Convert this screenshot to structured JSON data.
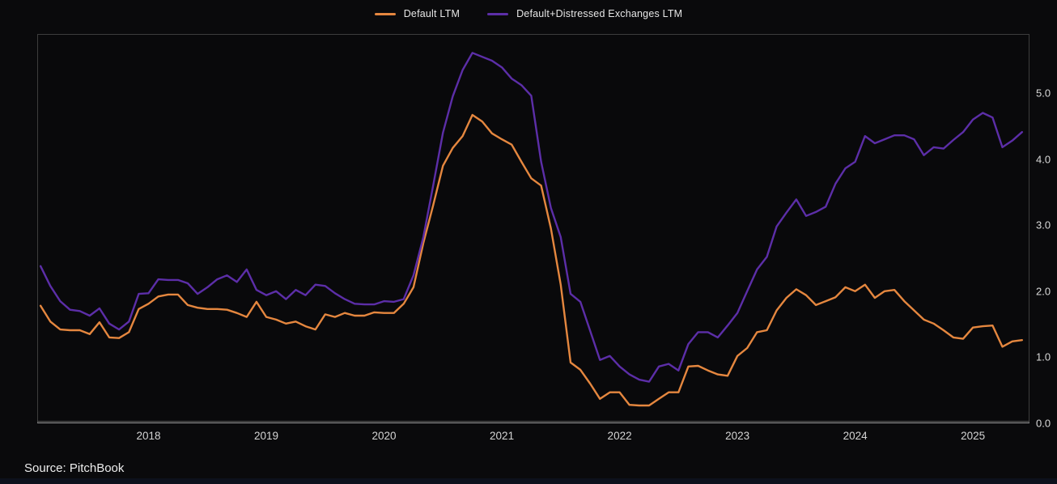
{
  "legend": [
    {
      "label": "Default LTM",
      "color": "#e5873f"
    },
    {
      "label": "Default+Distressed Exchanges LTM",
      "color": "#5c2ea8"
    }
  ],
  "source_label": "Source: PitchBook",
  "colors": {
    "background": "#0a0a0c",
    "plot_border": "#3d3d3d",
    "axis_line": "#a0a0a0",
    "tick_text": "#d6d6d6",
    "bottom_strip": "#0d111c"
  },
  "chart_data": {
    "type": "line",
    "title": "",
    "xlabel": "",
    "ylabel": "",
    "grid": false,
    "legend_position": "top-center",
    "x_start": 2017.0833,
    "x_step_years": 0.0833333,
    "xlim": [
      2017.055,
      2025.48
    ],
    "ylim": [
      0,
      5.895
    ],
    "x_ticks": [
      2018,
      2019,
      2020,
      2021,
      2022,
      2023,
      2024,
      2025
    ],
    "y_ticks": [
      0,
      1,
      2,
      3,
      4,
      5
    ],
    "y_tick_labels": [
      "0.0",
      "1.0",
      "2.0",
      "3.0",
      "4.0",
      "5.0"
    ],
    "series": [
      {
        "id": "default-ltm",
        "name": "Default LTM",
        "color": "#e5873f",
        "values": [
          1.78,
          1.54,
          1.42,
          1.41,
          1.41,
          1.35,
          1.53,
          1.3,
          1.29,
          1.38,
          1.73,
          1.81,
          1.92,
          1.95,
          1.95,
          1.79,
          1.75,
          1.73,
          1.73,
          1.72,
          1.67,
          1.61,
          1.84,
          1.61,
          1.57,
          1.51,
          1.54,
          1.47,
          1.42,
          1.65,
          1.61,
          1.67,
          1.63,
          1.63,
          1.68,
          1.67,
          1.67,
          1.81,
          2.06,
          2.73,
          3.3,
          3.9,
          4.17,
          4.35,
          4.67,
          4.57,
          4.39,
          4.3,
          4.22,
          3.96,
          3.71,
          3.6,
          2.95,
          2.1,
          0.92,
          0.81,
          0.6,
          0.37,
          0.47,
          0.47,
          0.28,
          0.27,
          0.27,
          0.37,
          0.47,
          0.47,
          0.86,
          0.87,
          0.8,
          0.74,
          0.72,
          1.02,
          1.14,
          1.38,
          1.41,
          1.71,
          1.9,
          2.03,
          1.94,
          1.79,
          1.85,
          1.91,
          2.06,
          2.0,
          2.1,
          1.9,
          2.0,
          2.02,
          1.85,
          1.71,
          1.57,
          1.51,
          1.41,
          1.3,
          1.28,
          1.45,
          1.47,
          1.48,
          1.16,
          1.24,
          1.26
        ]
      },
      {
        "id": "default-distressed-ltm",
        "name": "Default+Distressed Exchanges LTM",
        "color": "#5c2ea8",
        "values": [
          2.38,
          2.08,
          1.85,
          1.72,
          1.7,
          1.63,
          1.74,
          1.51,
          1.42,
          1.54,
          1.96,
          1.97,
          2.18,
          2.17,
          2.17,
          2.12,
          1.96,
          2.06,
          2.18,
          2.24,
          2.14,
          2.33,
          2.02,
          1.94,
          2.0,
          1.88,
          2.02,
          1.94,
          2.1,
          2.08,
          1.97,
          1.88,
          1.81,
          1.8,
          1.8,
          1.85,
          1.84,
          1.88,
          2.24,
          2.82,
          3.6,
          4.4,
          4.95,
          5.35,
          5.61,
          5.55,
          5.49,
          5.39,
          5.22,
          5.12,
          4.96,
          3.96,
          3.26,
          2.82,
          1.96,
          1.84,
          1.4,
          0.96,
          1.02,
          0.86,
          0.74,
          0.66,
          0.63,
          0.86,
          0.9,
          0.8,
          1.2,
          1.38,
          1.38,
          1.3,
          1.48,
          1.67,
          2.0,
          2.33,
          2.52,
          2.98,
          3.19,
          3.39,
          3.14,
          3.2,
          3.28,
          3.63,
          3.86,
          3.96,
          4.35,
          4.24,
          4.3,
          4.36,
          4.36,
          4.3,
          4.06,
          4.18,
          4.16,
          4.29,
          4.41,
          4.6,
          4.7,
          4.63,
          4.18,
          4.28,
          4.41
        ]
      }
    ]
  }
}
